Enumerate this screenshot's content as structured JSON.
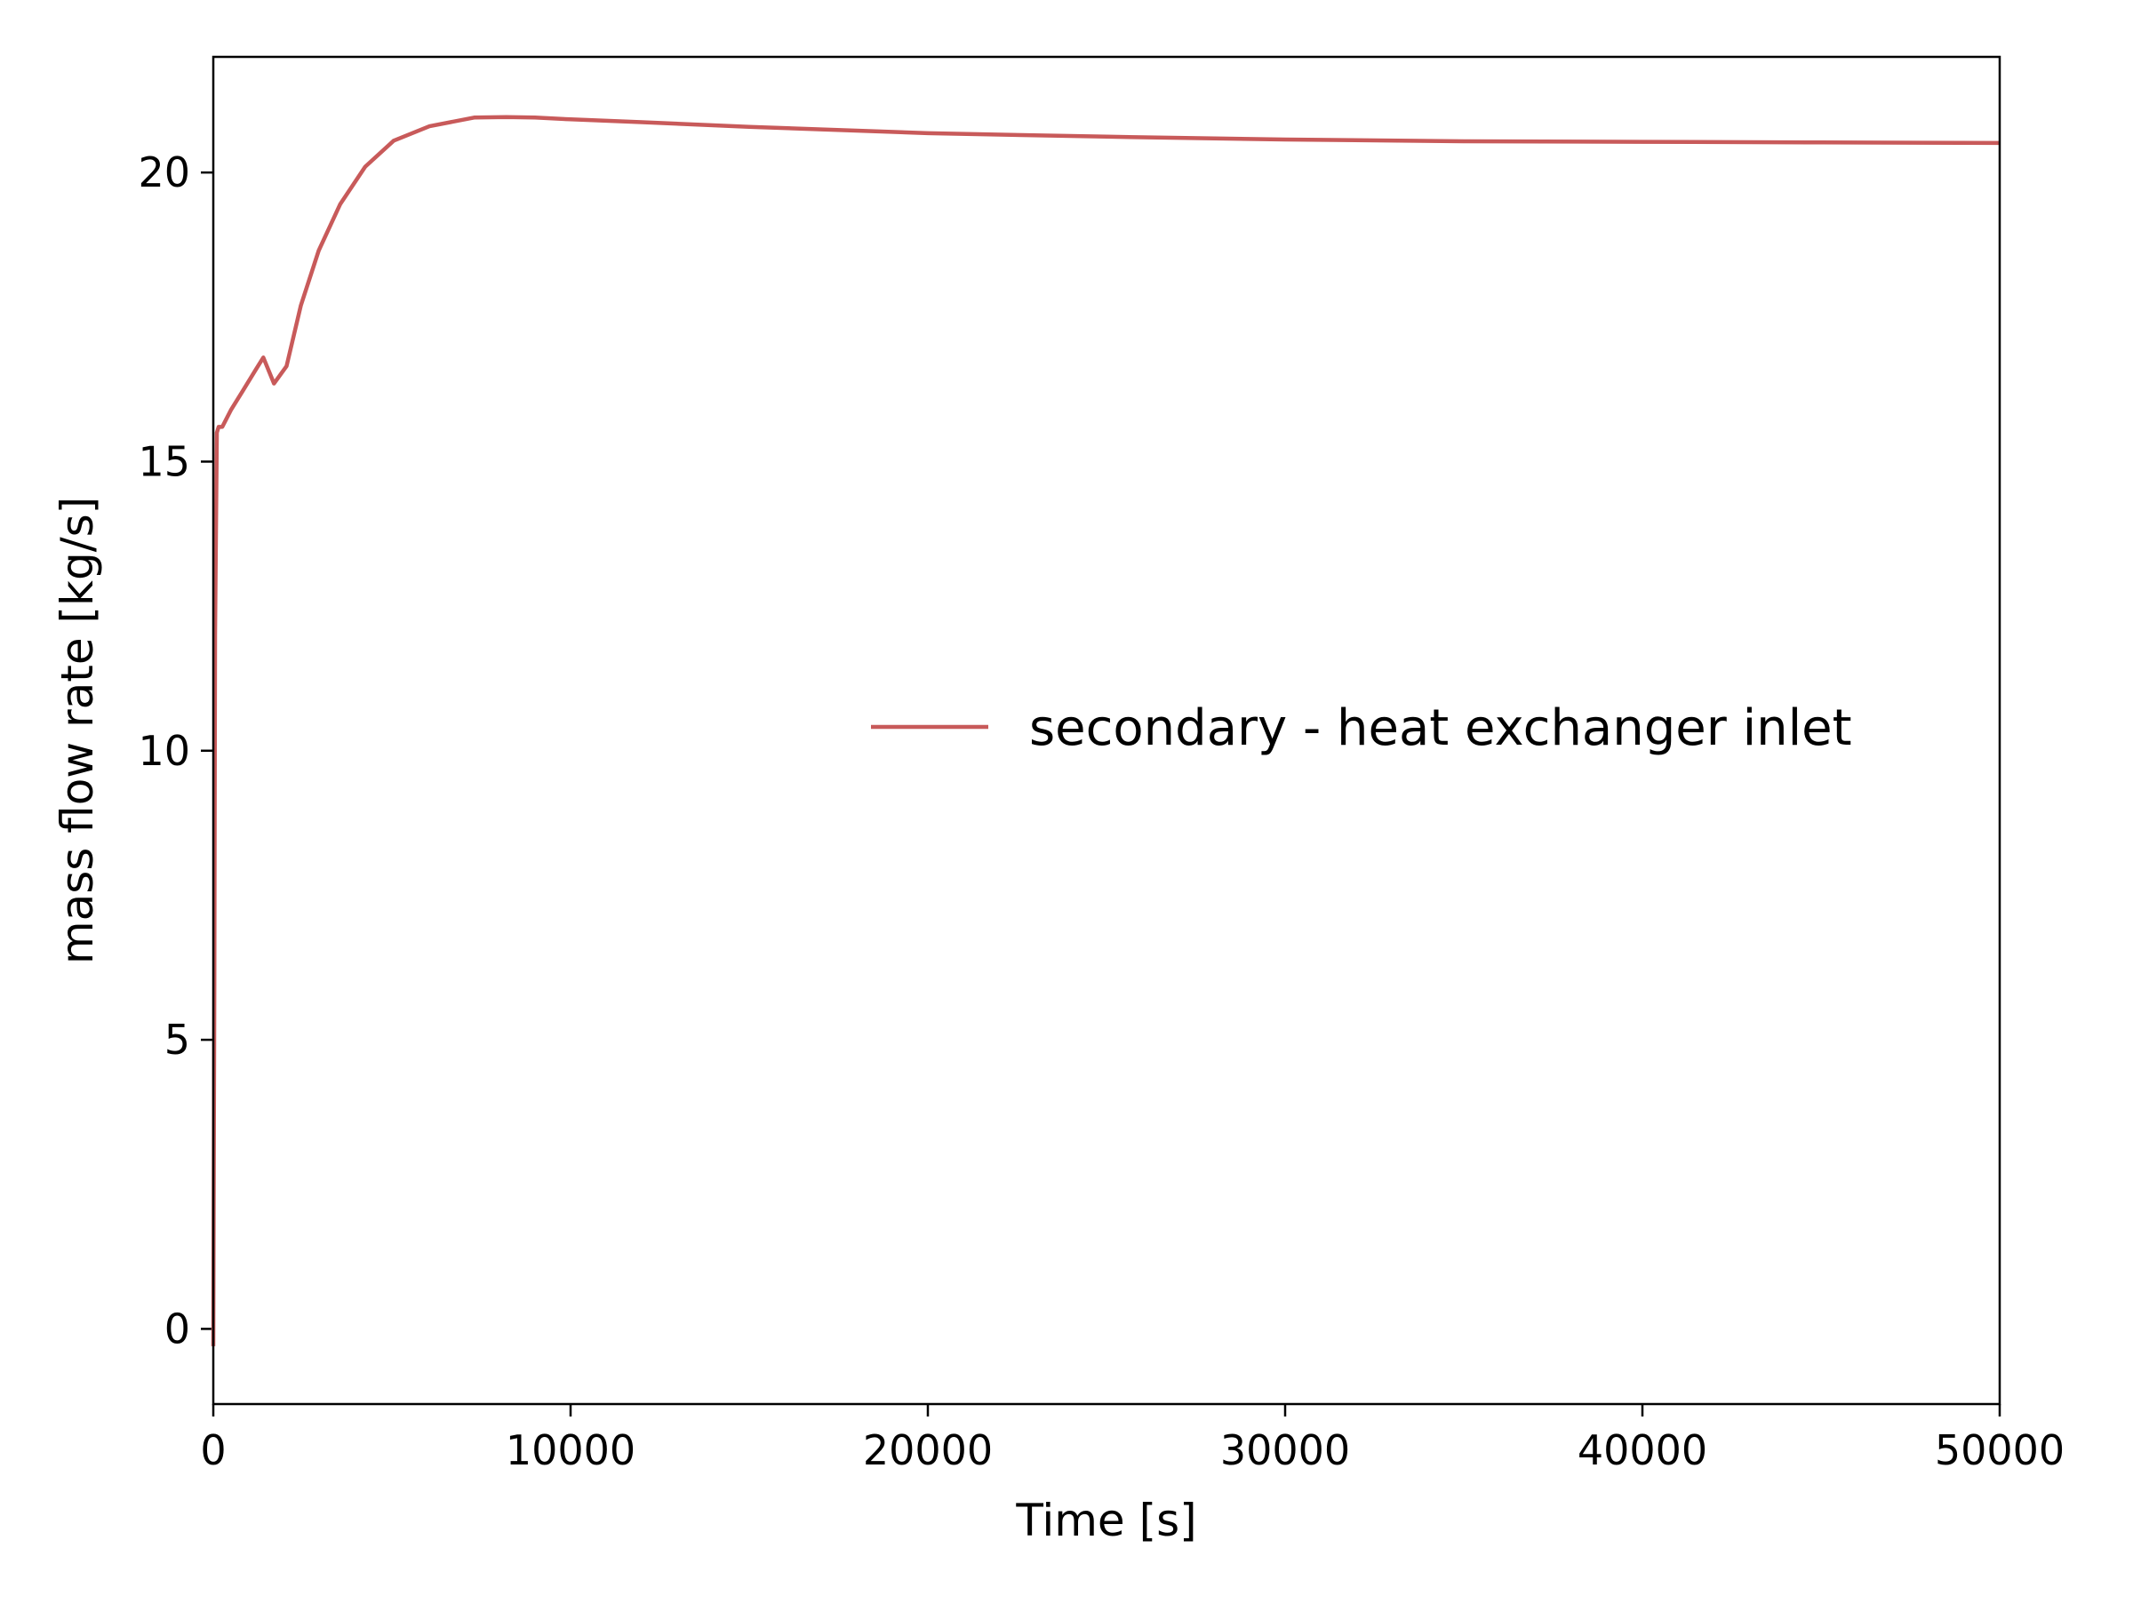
{
  "chart_data": {
    "type": "line",
    "title": "",
    "xlabel": "Time [s]",
    "ylabel": "mass flow rate [kg/s]",
    "xlim": [
      0,
      50000
    ],
    "ylim": [
      -1.3,
      22.0
    ],
    "xticks": [
      0,
      10000,
      20000,
      30000,
      40000,
      50000
    ],
    "yticks": [
      0,
      5,
      10,
      15,
      20
    ],
    "xtick_labels": [
      "0",
      "10000",
      "20000",
      "30000",
      "40000",
      "50000"
    ],
    "ytick_labels": [
      "0",
      "5",
      "10",
      "15",
      "20"
    ],
    "grid": false,
    "legend_position": "center-right",
    "series": [
      {
        "name": "secondary - heat exchanger inlet",
        "color": "#c85a5a",
        "x": [
          0,
          10,
          30,
          50,
          100,
          150,
          250,
          500,
          800,
          1200,
          1400,
          1700,
          2050,
          2450,
          2950,
          3550,
          4250,
          5050,
          6050,
          7300,
          8200,
          9000,
          10000,
          12000,
          15000,
          20000,
          25000,
          30000,
          35000,
          40000,
          45000,
          50000
        ],
        "y": [
          -0.3,
          2.0,
          6.0,
          12.0,
          15.5,
          15.6,
          15.6,
          15.9,
          16.2,
          16.6,
          16.8,
          16.35,
          16.65,
          17.7,
          18.65,
          19.45,
          20.1,
          20.55,
          20.8,
          20.95,
          20.96,
          20.95,
          20.92,
          20.87,
          20.79,
          20.68,
          20.62,
          20.57,
          20.54,
          20.53,
          20.52,
          20.51
        ]
      }
    ]
  }
}
